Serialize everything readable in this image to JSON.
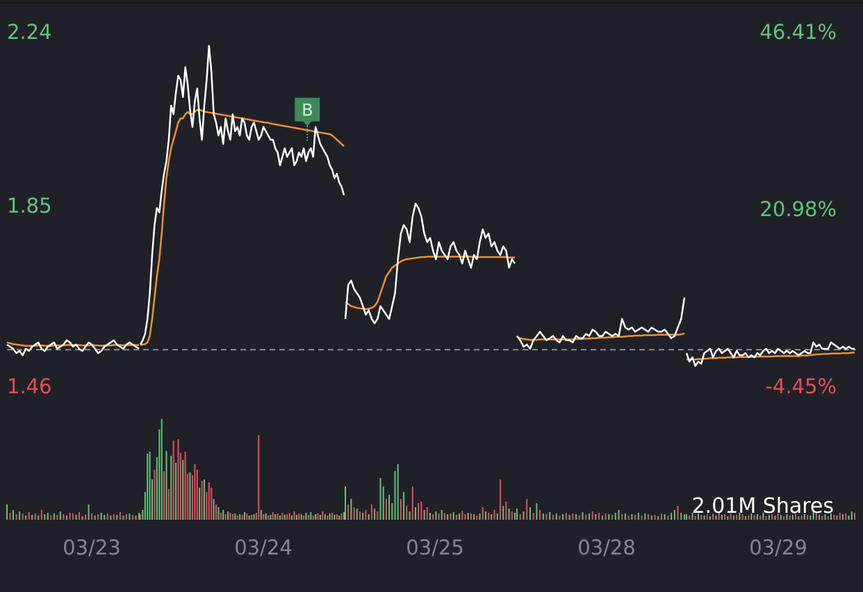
{
  "colors": {
    "background": "#202128",
    "price_line": "#ffffff",
    "avg_line": "#f0912e",
    "up": "#5fc47a",
    "down": "#e84c5a",
    "marker_bg": "#3d8a57",
    "baseline": "#8d8f99",
    "date_text": "#85868f"
  },
  "chart_data": {
    "type": "line",
    "price_axis": {
      "ylim": [
        1.46,
        2.24
      ],
      "ticks": [
        "2.24",
        "1.85",
        "1.46"
      ]
    },
    "percent_axis": {
      "ticks": [
        "46.41%",
        "20.98%",
        "-4.45%"
      ]
    },
    "prev_close": 1.528,
    "x_labels": [
      "03/23",
      "03/24",
      "03/25",
      "03/28",
      "03/29"
    ],
    "volume_label": "2.01M Shares",
    "trade_marker": {
      "label": "B",
      "session": 1,
      "position": 0.82,
      "price": 2.05
    },
    "sessions": [
      {
        "price": [
          1.54,
          1.535,
          1.53,
          1.52,
          1.525,
          1.515,
          1.53,
          1.525,
          1.535,
          1.54,
          1.545,
          1.53,
          1.525,
          1.535,
          1.54,
          1.545,
          1.53,
          1.535,
          1.54,
          1.55,
          1.545,
          1.535,
          1.54,
          1.53,
          1.525,
          1.535,
          1.545,
          1.54,
          1.53,
          1.52,
          1.525,
          1.535,
          1.54,
          1.545,
          1.55,
          1.54,
          1.535,
          1.53,
          1.54,
          1.545,
          1.54,
          1.535,
          1.53,
          1.54,
          1.55,
          1.565,
          1.6,
          1.66,
          1.75,
          1.82,
          1.86,
          1.85,
          1.9,
          1.94,
          1.97,
          2.02,
          2.1,
          2.08,
          2.13,
          2.17,
          2.16,
          2.12,
          2.19,
          2.15,
          2.09,
          2.05,
          2.11,
          2.14,
          2.07,
          2.02,
          2.1,
          2.16,
          2.24,
          2.18,
          2.08,
          2.06,
          2.03,
          2.05,
          2.01,
          2.07,
          2.04,
          2.02,
          2.08,
          2.04,
          2.05,
          2.03,
          2.07,
          2.06,
          2.03,
          2.02,
          2.05,
          2.06,
          2.04,
          2.02,
          2.03,
          2.05,
          2.04,
          2.03,
          2.02,
          2.02,
          2.0,
          1.99,
          1.96,
          1.98,
          2.0,
          1.98,
          1.99,
          2.0,
          1.96,
          1.97,
          1.99,
          1.98,
          2.0,
          1.97,
          1.99,
          2.0,
          1.98,
          2.05,
          2.03,
          2.01,
          2.0,
          1.99,
          1.98,
          1.96,
          1.95,
          1.93,
          1.94,
          1.92,
          1.91,
          1.89
        ],
        "avg": [
          1.545,
          1.543,
          1.541,
          1.54,
          1.539,
          1.538,
          1.537,
          1.537,
          1.537,
          1.537,
          1.538,
          1.538,
          1.537,
          1.537,
          1.537,
          1.538,
          1.538,
          1.538,
          1.538,
          1.539,
          1.539,
          1.539,
          1.539,
          1.539,
          1.538,
          1.538,
          1.538,
          1.539,
          1.538,
          1.538,
          1.537,
          1.538,
          1.538,
          1.538,
          1.539,
          1.539,
          1.539,
          1.538,
          1.539,
          1.539,
          1.539,
          1.539,
          1.539,
          1.539,
          1.54,
          1.541,
          1.545,
          1.56,
          1.6,
          1.65,
          1.7,
          1.74,
          1.8,
          1.87,
          1.93,
          1.97,
          2.0,
          2.02,
          2.04,
          2.06,
          2.07,
          2.07,
          2.08,
          2.085,
          2.08,
          2.08,
          2.085,
          2.09,
          2.09,
          2.088,
          2.086,
          2.085,
          2.084,
          2.083,
          2.082,
          2.081,
          2.08,
          2.079,
          2.078,
          2.077,
          2.076,
          2.075,
          2.074,
          2.073,
          2.072,
          2.071,
          2.07,
          2.069,
          2.068,
          2.067,
          2.066,
          2.065,
          2.064,
          2.063,
          2.062,
          2.061,
          2.06,
          2.06,
          2.058,
          2.057,
          2.056,
          2.055,
          2.054,
          2.053,
          2.052,
          2.051,
          2.05,
          2.049,
          2.048,
          2.047,
          2.046,
          2.045,
          2.044,
          2.043,
          2.042,
          2.041,
          2.04,
          2.039,
          2.038,
          2.037,
          2.036,
          2.035,
          2.034,
          2.033,
          2.03,
          2.025,
          2.02,
          2.015,
          2.01,
          2.005
        ],
        "volume": [
          22,
          10,
          14,
          8,
          12,
          9,
          6,
          11,
          7,
          9,
          6,
          14,
          8,
          10,
          6,
          9,
          7,
          12,
          8,
          6,
          10,
          9,
          7,
          11,
          5,
          8,
          22,
          9,
          6,
          8,
          10,
          7,
          9,
          6,
          8,
          7,
          11,
          6,
          8,
          9,
          7,
          6,
          10,
          8,
          14,
          40,
          95,
          98,
          58,
          72,
          90,
          130,
          145,
          70,
          99,
          44,
          92,
          114,
          82,
          116,
          96,
          86,
          98,
          66,
          68,
          64,
          80,
          72,
          46,
          56,
          58,
          40,
          54,
          46,
          30,
          22,
          18,
          10,
          14,
          8,
          12,
          10,
          8,
          9,
          6,
          8,
          7,
          11,
          9,
          6,
          7,
          8,
          10,
          122,
          14,
          8,
          9,
          6,
          7,
          11,
          8,
          9,
          6,
          10,
          7,
          8,
          9,
          6,
          12,
          7,
          9,
          8,
          6,
          10,
          7,
          11,
          6,
          8,
          9,
          7,
          12,
          8,
          6,
          9,
          10,
          7,
          8,
          6,
          9,
          11
        ],
        "volume_up": [
          1,
          0,
          1,
          0,
          1,
          0,
          1,
          0,
          1,
          0,
          1,
          0,
          1,
          1,
          0,
          1,
          0,
          1,
          0,
          1,
          0,
          0,
          1,
          0,
          1,
          0,
          1,
          0,
          1,
          0,
          1,
          1,
          0,
          1,
          0,
          1,
          0,
          1,
          0,
          1,
          0,
          1,
          1,
          0,
          1,
          1,
          1,
          1,
          1,
          0,
          1,
          1,
          1,
          0,
          1,
          0,
          1,
          0,
          1,
          0,
          0,
          1,
          0,
          0,
          1,
          0,
          0,
          0,
          1,
          0,
          1,
          0,
          0,
          0,
          1,
          0,
          1,
          0,
          1,
          0,
          1,
          0,
          0,
          1,
          0,
          1,
          0,
          1,
          0,
          1,
          0,
          1,
          0,
          0,
          1,
          0,
          1,
          0,
          1,
          0,
          1,
          0,
          1,
          0,
          1,
          0,
          0,
          1,
          0,
          1,
          0,
          1,
          0,
          1,
          0,
          1,
          0,
          1,
          0,
          1,
          0,
          1,
          0,
          1,
          0,
          1,
          0,
          1,
          0,
          1
        ]
      },
      {
        "price": [
          1.6,
          1.68,
          1.69,
          1.67,
          1.66,
          1.65,
          1.63,
          1.61,
          1.62,
          1.6,
          1.59,
          1.6,
          1.63,
          1.62,
          1.61,
          1.6,
          1.63,
          1.66,
          1.74,
          1.8,
          1.82,
          1.81,
          1.78,
          1.84,
          1.87,
          1.86,
          1.84,
          1.8,
          1.78,
          1.79,
          1.76,
          1.74,
          1.78,
          1.76,
          1.75,
          1.74,
          1.77,
          1.78,
          1.76,
          1.75,
          1.73,
          1.76,
          1.74,
          1.72,
          1.75,
          1.74,
          1.78,
          1.81,
          1.79,
          1.8,
          1.77,
          1.78,
          1.76,
          1.75,
          1.77,
          1.76,
          1.72,
          1.74,
          1.73
        ],
        "avg": [
          1.64,
          1.635,
          1.63,
          1.628,
          1.626,
          1.625,
          1.624,
          1.623,
          1.624,
          1.626,
          1.63,
          1.64,
          1.66,
          1.68,
          1.7,
          1.71,
          1.72,
          1.725,
          1.73,
          1.735,
          1.738,
          1.74,
          1.741,
          1.742,
          1.743,
          1.744,
          1.745,
          1.745,
          1.746,
          1.746,
          1.746,
          1.746,
          1.746,
          1.746,
          1.746,
          1.746,
          1.746,
          1.746,
          1.746,
          1.746,
          1.746,
          1.746,
          1.746,
          1.746,
          1.745,
          1.745,
          1.745,
          1.745,
          1.745,
          1.745,
          1.745,
          1.745,
          1.745,
          1.745,
          1.745,
          1.745,
          1.744,
          1.744,
          1.744
        ],
        "volume": [
          48,
          22,
          30,
          18,
          16,
          12,
          10,
          14,
          8,
          22,
          16,
          12,
          60,
          48,
          30,
          36,
          24,
          70,
          80,
          30,
          40,
          20,
          12,
          48,
          18,
          24,
          26,
          14,
          18,
          10,
          8,
          12,
          9,
          14,
          10,
          8,
          9,
          11,
          7,
          9,
          13,
          8,
          10,
          9,
          8,
          6,
          9,
          18,
          12,
          10,
          8,
          14,
          9,
          58,
          20,
          26,
          16,
          12,
          10
        ],
        "volume_up": [
          1,
          0,
          1,
          0,
          1,
          0,
          1,
          0,
          1,
          0,
          1,
          0,
          1,
          1,
          0,
          1,
          1,
          1,
          1,
          0,
          1,
          0,
          1,
          0,
          1,
          0,
          0,
          1,
          0,
          1,
          0,
          1,
          0,
          1,
          0,
          1,
          0,
          1,
          0,
          1,
          0,
          0,
          1,
          0,
          1,
          0,
          1,
          0,
          1,
          0,
          1,
          0,
          1,
          0,
          1,
          0,
          1,
          0,
          1
        ]
      },
      {
        "price": [
          1.56,
          1.55,
          1.535,
          1.54,
          1.53,
          1.55,
          1.56,
          1.57,
          1.56,
          1.55,
          1.555,
          1.56,
          1.55,
          1.545,
          1.56,
          1.55,
          1.55,
          1.545,
          1.56,
          1.555,
          1.555,
          1.565,
          1.56,
          1.575,
          1.57,
          1.56,
          1.56,
          1.57,
          1.565,
          1.56,
          1.565,
          1.56,
          1.6,
          1.58,
          1.575,
          1.58,
          1.57,
          1.575,
          1.58,
          1.575,
          1.57,
          1.58,
          1.575,
          1.57,
          1.57,
          1.575,
          1.565,
          1.555,
          1.56,
          1.58,
          1.6,
          1.65
        ],
        "avg": [
          1.558,
          1.555,
          1.553,
          1.552,
          1.551,
          1.551,
          1.551,
          1.552,
          1.552,
          1.552,
          1.552,
          1.552,
          1.552,
          1.552,
          1.552,
          1.552,
          1.552,
          1.552,
          1.553,
          1.553,
          1.553,
          1.554,
          1.554,
          1.555,
          1.555,
          1.556,
          1.556,
          1.556,
          1.557,
          1.557,
          1.558,
          1.558,
          1.558,
          1.559,
          1.56,
          1.56,
          1.561,
          1.561,
          1.561,
          1.562,
          1.562,
          1.562,
          1.562,
          1.563,
          1.563,
          1.563,
          1.563,
          1.563,
          1.563,
          1.563,
          1.564,
          1.566
        ],
        "volume": [
          16,
          8,
          12,
          30,
          18,
          10,
          24,
          14,
          9,
          8,
          11,
          7,
          9,
          6,
          8,
          10,
          7,
          9,
          8,
          6,
          11,
          7,
          9,
          12,
          8,
          10,
          6,
          9,
          8,
          7,
          10,
          14,
          8,
          9,
          6,
          8,
          7,
          10,
          6,
          9,
          8,
          6,
          7,
          5,
          9,
          8,
          6,
          10,
          14,
          20,
          10,
          8
        ],
        "volume_up": [
          1,
          0,
          1,
          0,
          1,
          0,
          1,
          0,
          1,
          0,
          1,
          0,
          1,
          0,
          1,
          0,
          1,
          0,
          1,
          0,
          1,
          0,
          1,
          0,
          1,
          0,
          1,
          0,
          1,
          0,
          1,
          1,
          0,
          1,
          0,
          1,
          0,
          1,
          0,
          1,
          0,
          1,
          0,
          1,
          0,
          1,
          0,
          1,
          1,
          0,
          1,
          1
        ]
      },
      {
        "price": [
          1.52,
          1.5,
          1.51,
          1.49,
          1.5,
          1.495,
          1.52,
          1.525,
          1.53,
          1.51,
          1.525,
          1.53,
          1.52,
          1.525,
          1.53,
          1.52,
          1.51,
          1.525,
          1.515,
          1.515,
          1.52,
          1.51,
          1.515,
          1.51,
          1.52,
          1.515,
          1.525,
          1.53,
          1.52,
          1.525,
          1.52,
          1.53,
          1.525,
          1.52,
          1.525,
          1.52,
          1.525,
          1.52,
          1.515,
          1.52,
          1.525,
          1.52,
          1.52,
          1.545,
          1.535,
          1.54,
          1.53,
          1.53,
          1.53,
          1.545,
          1.54,
          1.535,
          1.53,
          1.535,
          1.53,
          1.535,
          1.53,
          1.53
        ],
        "avg": [
          1.505,
          1.505,
          1.505,
          1.505,
          1.506,
          1.506,
          1.507,
          1.507,
          1.508,
          1.508,
          1.508,
          1.509,
          1.509,
          1.509,
          1.51,
          1.51,
          1.51,
          1.51,
          1.511,
          1.511,
          1.511,
          1.511,
          1.511,
          1.511,
          1.512,
          1.512,
          1.512,
          1.512,
          1.512,
          1.512,
          1.513,
          1.513,
          1.513,
          1.513,
          1.513,
          1.513,
          1.513,
          1.513,
          1.513,
          1.514,
          1.514,
          1.514,
          1.515,
          1.516,
          1.517,
          1.517,
          1.518,
          1.518,
          1.518,
          1.519,
          1.519,
          1.519,
          1.519,
          1.52,
          1.52,
          1.52,
          1.521,
          1.521
        ],
        "volume": [
          8,
          6,
          10,
          5,
          9,
          7,
          6,
          8,
          5,
          9,
          6,
          12,
          7,
          8,
          5,
          9,
          6,
          7,
          10,
          8,
          5,
          6,
          9,
          7,
          8,
          6,
          10,
          5,
          7,
          8,
          6,
          9,
          7,
          5,
          8,
          6,
          7,
          9,
          5,
          6,
          8,
          7,
          6,
          12,
          9,
          7,
          6,
          8,
          5,
          9,
          7,
          6,
          10,
          8,
          9,
          6,
          12,
          10
        ],
        "volume_up": [
          1,
          0,
          1,
          0,
          1,
          0,
          1,
          0,
          1,
          0,
          1,
          0,
          1,
          0,
          1,
          0,
          1,
          0,
          1,
          0,
          1,
          0,
          1,
          0,
          1,
          0,
          1,
          0,
          1,
          0,
          1,
          0,
          1,
          0,
          1,
          0,
          1,
          0,
          1,
          0,
          1,
          0,
          1,
          1,
          0,
          1,
          0,
          1,
          0,
          1,
          0,
          1,
          0,
          1,
          0,
          1,
          1,
          0
        ]
      }
    ]
  }
}
